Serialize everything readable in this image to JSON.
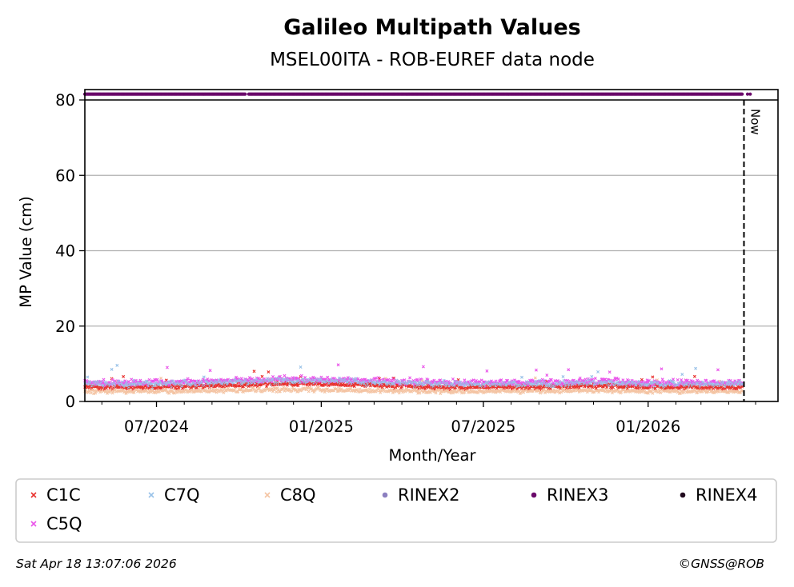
{
  "chart_data": {
    "type": "scatter",
    "title": "Galileo Multipath Values",
    "subtitle": "MSEL00ITA - ROB-EUREF data node",
    "xlabel": "Month/Year",
    "ylabel": "MP Value (cm)",
    "ylim": [
      0,
      80
    ],
    "yticks": [
      "0",
      "20",
      "40",
      "60",
      "80"
    ],
    "xlim": [
      "2024-04-12",
      "2026-05-26"
    ],
    "xticks": [
      {
        "date": "2024-07-01",
        "label": "07/2024"
      },
      {
        "date": "2025-01-01",
        "label": "01/2025"
      },
      {
        "date": "2025-07-01",
        "label": "07/2025"
      },
      {
        "date": "2026-01-01",
        "label": "01/2026"
      }
    ],
    "grid": "horizontal",
    "now_marker": {
      "date": "2026-04-18",
      "label": "Now"
    },
    "data_start": "2024-04-12",
    "data_end": "2026-04-16",
    "rinex_gap": {
      "start": "2024-10-09",
      "end": "2024-10-11"
    },
    "rinex_level": 81.5,
    "series": [
      {
        "name": "C1C",
        "marker": "x",
        "color": "#e8322e",
        "mean": 3.8,
        "spread": 0.5
      },
      {
        "name": "C7Q",
        "marker": "x",
        "color": "#99c2e8",
        "mean": 4.6,
        "spread": 0.7
      },
      {
        "name": "C8Q",
        "marker": "x",
        "color": "#f4c4a3",
        "mean": 2.7,
        "spread": 0.5
      },
      {
        "name": "RINEX2",
        "marker": "dot",
        "color": "#8c7fc0"
      },
      {
        "name": "RINEX3",
        "marker": "dot",
        "color": "#6b0a6b"
      },
      {
        "name": "RINEX4",
        "marker": "dot",
        "color": "#200a1e"
      },
      {
        "name": "C5Q",
        "marker": "x",
        "color": "#ea55ea",
        "mean": 5.0,
        "spread": 0.7
      }
    ],
    "footer_left": "Sat Apr 18 13:07:06 2026",
    "footer_right": "©GNSS@ROB",
    "legend_position": "bottom"
  }
}
